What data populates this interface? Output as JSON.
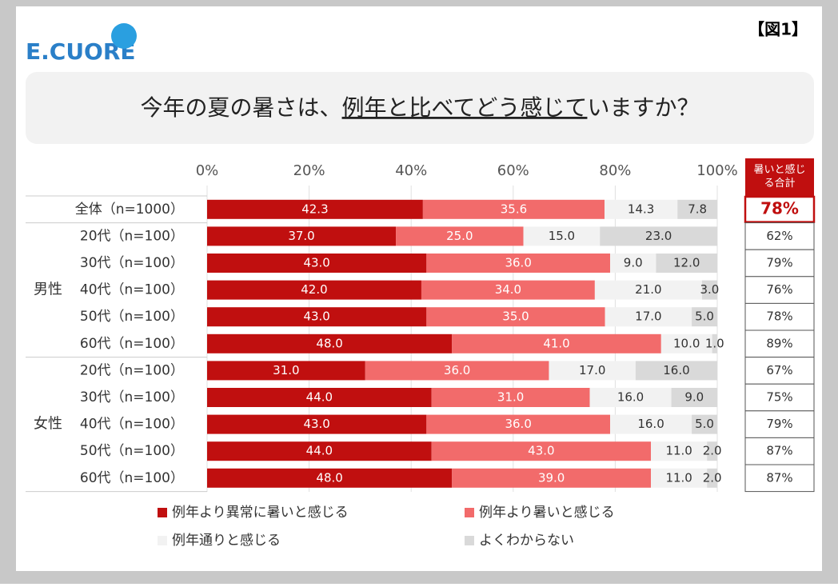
{
  "header": {
    "logo": "E.CUORE",
    "figure_label": "【図1】",
    "question": {
      "before": "今年の夏の暑さは、",
      "underlined": "例年と比べてどう感じて",
      "after": "いますか？"
    }
  },
  "chart_data": {
    "type": "stacked-bar-horizontal",
    "categories": [
      "全体（n=1000）",
      "20代（n=100）",
      "30代（n=100）",
      "40代（n=100）",
      "50代（n=100）",
      "60代（n=100）",
      "20代（n=100）",
      "30代（n=100）",
      "40代（n=100）",
      "50代（n=100）",
      "60代（n=100）"
    ],
    "groups": [
      "男性",
      "女性"
    ],
    "xlim": [
      0,
      100
    ],
    "xticks": [
      {
        "value": 0,
        "label": "0%"
      },
      {
        "value": 20,
        "label": "20%"
      },
      {
        "value": 40,
        "label": "40%"
      },
      {
        "value": 60,
        "label": "60%"
      },
      {
        "value": 80,
        "label": "80%"
      },
      {
        "value": 100,
        "label": "100%"
      }
    ],
    "series": [
      {
        "name": "例年より異常に暑いと感じる",
        "color": "#c00f0f",
        "values": [
          42.3,
          37,
          43,
          42,
          43,
          48,
          31,
          44,
          43,
          44,
          48
        ],
        "value_labels": [
          "42.3",
          "37.0",
          "43.0",
          "42.0",
          "43.0",
          "48.0",
          "31.0",
          "44.0",
          "43.0",
          "44.0",
          "48.0"
        ]
      },
      {
        "name": "例年より暑いと感じる",
        "color": "#f26b6b",
        "values": [
          35.6,
          25,
          36,
          34,
          35,
          41,
          36,
          31,
          36,
          43,
          39
        ],
        "value_labels": [
          "35.6",
          "25.0",
          "36.0",
          "34.0",
          "35.0",
          "41.0",
          "36.0",
          "31.0",
          "36.0",
          "43.0",
          "39.0"
        ]
      },
      {
        "name": "例年通りと感じる",
        "color": "#f2f2f2",
        "values": [
          14.3,
          15,
          9,
          21,
          17,
          10,
          17,
          16,
          16,
          11,
          11
        ],
        "value_labels": [
          "14.3",
          "15.0",
          "9.0",
          "21.0",
          "17.0",
          "10.0",
          "17.0",
          "16.0",
          "16.0",
          "11.0",
          "11.0"
        ]
      },
      {
        "name": "よくわからない",
        "color": "#d9d9d9",
        "values": [
          7.8,
          23,
          12,
          3,
          5,
          1,
          16,
          9,
          5,
          2,
          2
        ],
        "value_labels": [
          "7.8",
          "23.0",
          "12.0",
          "3.0",
          "5.0",
          "1.0",
          "16.0",
          "9.0",
          "5.0",
          "2.0",
          "2.0"
        ]
      }
    ],
    "totals": {
      "title": "暑いと感じる合計",
      "values": [
        78,
        62,
        79,
        76,
        78,
        89,
        67,
        75,
        79,
        87,
        87
      ],
      "value_labels": [
        "78%",
        "62%",
        "79%",
        "76%",
        "78%",
        "89%",
        "67%",
        "75%",
        "79%",
        "87%",
        "87%"
      ]
    }
  }
}
